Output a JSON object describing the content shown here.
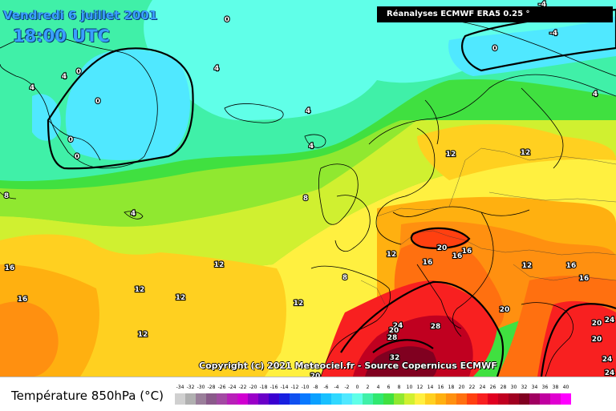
{
  "header": {
    "date": "Vendredi 6 juillet 2001",
    "time": "18:00 UTC",
    "source": "Réanalyses ECMWF ERA5 0.25 °"
  },
  "footer": {
    "copyright": "Copyright (c) 2021 Meteociel.fr - Source Copernicus ECMWF"
  },
  "legend": {
    "title": "Température 850hPa (°C)",
    "scale": [
      {
        "label": "-34",
        "color": "#d0d0d0"
      },
      {
        "label": "-32",
        "color": "#b0b0b0"
      },
      {
        "label": "-30",
        "color": "#9a7f9a"
      },
      {
        "label": "-28",
        "color": "#8a5a8a"
      },
      {
        "label": "-26",
        "color": "#a24aa2"
      },
      {
        "label": "-24",
        "color": "#b820b8"
      },
      {
        "label": "-22",
        "color": "#d000d0"
      },
      {
        "label": "-20",
        "color": "#9a00c8"
      },
      {
        "label": "-18",
        "color": "#6a00c8"
      },
      {
        "label": "-16",
        "color": "#3a00d0"
      },
      {
        "label": "-14",
        "color": "#1820e0"
      },
      {
        "label": "-12",
        "color": "#1050f0"
      },
      {
        "label": "-10",
        "color": "#0878ff"
      },
      {
        "label": "-8",
        "color": "#0aa0ff"
      },
      {
        "label": "-6",
        "color": "#18c0ff"
      },
      {
        "label": "-4",
        "color": "#30d8ff"
      },
      {
        "label": "-2",
        "color": "#50e8ff"
      },
      {
        "label": "0",
        "color": "#60ffe8"
      },
      {
        "label": "2",
        "color": "#40f0a8"
      },
      {
        "label": "4",
        "color": "#30e870"
      },
      {
        "label": "6",
        "color": "#40e040"
      },
      {
        "label": "8",
        "color": "#90e830"
      },
      {
        "label": "10",
        "color": "#d0f030"
      },
      {
        "label": "12",
        "color": "#fff040"
      },
      {
        "label": "14",
        "color": "#ffd020"
      },
      {
        "label": "16",
        "color": "#ffb010"
      },
      {
        "label": "18",
        "color": "#ff9010"
      },
      {
        "label": "20",
        "color": "#ff7010"
      },
      {
        "label": "22",
        "color": "#ff4010"
      },
      {
        "label": "24",
        "color": "#f82020"
      },
      {
        "label": "26",
        "color": "#e00020"
      },
      {
        "label": "28",
        "color": "#c00020"
      },
      {
        "label": "30",
        "color": "#a00020"
      },
      {
        "label": "32",
        "color": "#800020"
      },
      {
        "label": "34",
        "color": "#a00060"
      },
      {
        "label": "36",
        "color": "#c000a0"
      },
      {
        "label": "38",
        "color": "#e000d0"
      },
      {
        "label": "40",
        "color": "#ff00ff"
      }
    ]
  },
  "map": {
    "labels": [
      {
        "t": "0"
      },
      {
        "t": "-4"
      },
      {
        "t": "-4"
      },
      {
        "t": "-4"
      },
      {
        "t": "0"
      },
      {
        "t": "0"
      },
      {
        "t": "4"
      },
      {
        "t": "4"
      },
      {
        "t": "4"
      },
      {
        "t": "0"
      },
      {
        "t": "0"
      },
      {
        "t": "0"
      },
      {
        "t": "4"
      },
      {
        "t": "4"
      },
      {
        "t": "4"
      },
      {
        "t": "8"
      },
      {
        "t": "8"
      },
      {
        "t": "4"
      },
      {
        "t": "12"
      },
      {
        "t": "12"
      },
      {
        "t": "12"
      },
      {
        "t": "16"
      },
      {
        "t": "16"
      },
      {
        "t": "12"
      },
      {
        "t": "12"
      },
      {
        "t": "12"
      },
      {
        "t": "12"
      },
      {
        "t": "12"
      },
      {
        "t": "8"
      },
      {
        "t": "12"
      },
      {
        "t": "20"
      },
      {
        "t": "16"
      },
      {
        "t": "16"
      },
      {
        "t": "16"
      },
      {
        "t": "12"
      },
      {
        "t": "16"
      },
      {
        "t": "16"
      },
      {
        "t": "20"
      },
      {
        "t": "24"
      },
      {
        "t": "20"
      },
      {
        "t": "20"
      },
      {
        "t": "24"
      },
      {
        "t": "28"
      },
      {
        "t": "28"
      },
      {
        "t": "32"
      },
      {
        "t": "20"
      },
      {
        "t": "24"
      },
      {
        "t": "24"
      },
      {
        "t": "20"
      },
      {
        "t": "24"
      }
    ]
  }
}
